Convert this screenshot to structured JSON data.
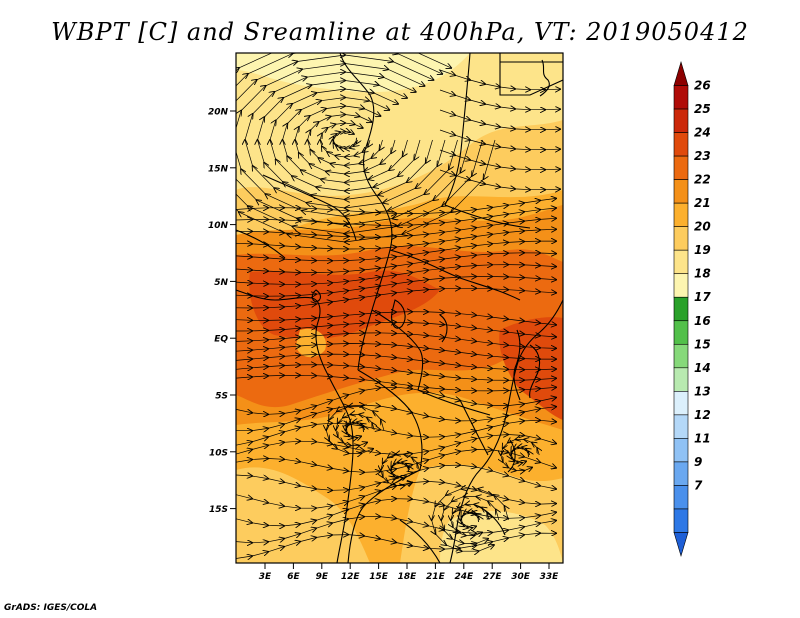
{
  "map": {
    "title": "WBPT [C] and Sreamline at 400hPa, VT: 2019050412",
    "variable": "Wet-bulb potential temperature",
    "units": "C",
    "level": "400hPa",
    "valid_time": "2019050412",
    "credit": "GrADS: IGES/COLA",
    "lat_ticks": [
      "20N",
      "15N",
      "10N",
      "5N",
      "EQ",
      "5S",
      "10S",
      "15S"
    ],
    "lon_ticks": [
      "3E",
      "6E",
      "9E",
      "12E",
      "15E",
      "18E",
      "21E",
      "24E",
      "27E",
      "30E",
      "33E"
    ],
    "colorbar": {
      "labels": [
        "7",
        "9",
        "11",
        "12",
        "13",
        "14",
        "15",
        "16",
        "17",
        "18",
        "19",
        "20",
        "21",
        "22",
        "23",
        "24",
        "25",
        "26"
      ],
      "colors": [
        "#1e5fd6",
        "#2e78e6",
        "#4a90ec",
        "#6aa8f0",
        "#90c2f5",
        "#b4d8f8",
        "#dcf0fc",
        "#b8eab0",
        "#86d97a",
        "#52c04a",
        "#2aa12a",
        "#fdf5b0",
        "#fde48a",
        "#fdcc5e",
        "#fcb02e",
        "#f49018",
        "#ec6a10",
        "#e04a0c",
        "#cc280a",
        "#b00c08",
        "#8c0000"
      ]
    }
  }
}
